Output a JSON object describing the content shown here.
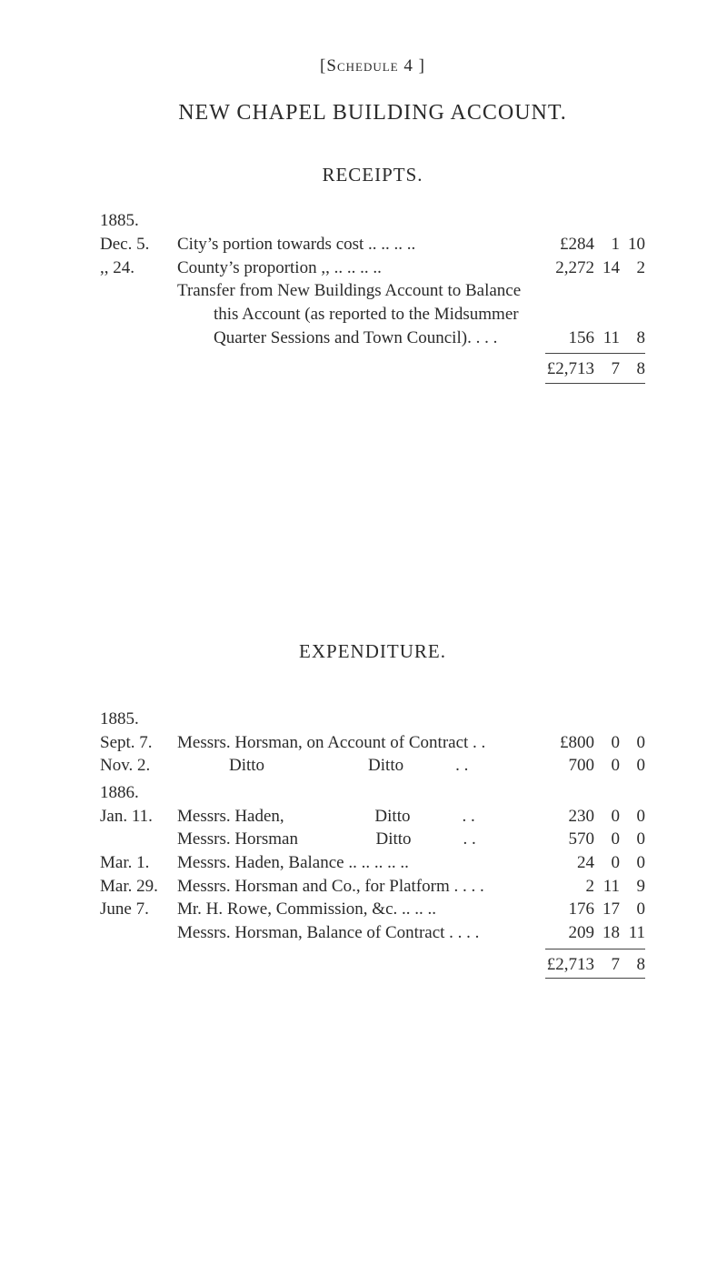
{
  "schedule_label": "[Schedule 4 ]",
  "main_title": "NEW CHAPEL BUILDING ACCOUNT.",
  "receipts": {
    "heading": "RECEIPTS.",
    "year": "1885.",
    "rows": [
      {
        "date": "Dec. 5.",
        "desc": "City’s portion towards cost  .. .. .. ..",
        "l": "£284",
        "s": "1",
        "d": "10"
      },
      {
        "date": ",, 24.",
        "desc": "County’s proportion  ,,            .. .. .. ..",
        "l": "2,272",
        "s": "14",
        "d": "2"
      },
      {
        "date": "",
        "desc": "Transfer from New Buildings Account to Balance",
        "l": "",
        "s": "",
        "d": ""
      },
      {
        "date": "",
        "desc_indent": "this Account (as reported to the Midsummer",
        "l": "",
        "s": "",
        "d": ""
      },
      {
        "date": "",
        "desc_indent": "Quarter Sessions and Town Council). .   . .",
        "l": "156",
        "s": "11",
        "d": "8"
      }
    ],
    "total": {
      "l": "£2,713",
      "s": "7",
      "d": "8"
    }
  },
  "expenditure": {
    "heading": "EXPENDITURE.",
    "year1": "1885.",
    "year2": "1886.",
    "rows1": [
      {
        "date": "Sept. 7.",
        "desc": "Messrs. Horsman, on Account of Contract  . .",
        "l": "£800",
        "s": "0",
        "d": "0"
      },
      {
        "date": "Nov. 2.",
        "desc": "            Ditto                        Ditto            . .",
        "l": "700",
        "s": "0",
        "d": "0"
      }
    ],
    "rows2": [
      {
        "date": "Jan. 11.",
        "desc": "Messrs. Haden,                     Ditto            . .",
        "l": "230",
        "s": "0",
        "d": "0"
      },
      {
        "date": "",
        "desc": "Messrs. Horsman                  Ditto            . .",
        "l": "570",
        "s": "0",
        "d": "0"
      },
      {
        "date": "Mar. 1.",
        "desc": "Messrs. Haden, Balance  .. .. .. .. ..",
        "l": "24",
        "s": "0",
        "d": "0"
      },
      {
        "date": "Mar. 29.",
        "desc": "Messrs. Horsman and Co., for Platform . .  . .",
        "l": "2",
        "s": "11",
        "d": "9"
      },
      {
        "date": "June 7.",
        "desc": "Mr. H. Rowe, Commission, &c.  .. .. ..",
        "l": "176",
        "s": "17",
        "d": "0"
      },
      {
        "date": "",
        "desc": "Messrs. Horsman, Balance of Contract . .  . .",
        "l": "209",
        "s": "18",
        "d": "11"
      }
    ],
    "total": {
      "l": "£2,713",
      "s": "7",
      "d": "8"
    }
  }
}
